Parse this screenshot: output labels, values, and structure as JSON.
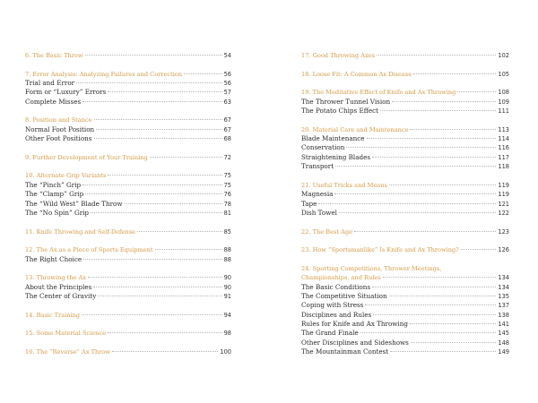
{
  "left": [
    {
      "title": "6. The Basic Throw",
      "page": "54",
      "heading": true
    },
    {},
    {
      "title": "7. Error Analysis: Analyzing Failures and Correction",
      "page": "56",
      "heading": true
    },
    {
      "title": "Trial and Error",
      "page": "56"
    },
    {
      "title": "Form or “Luxury” Errors",
      "page": "57"
    },
    {
      "title": "Complete Misses",
      "page": "63"
    },
    {},
    {
      "title": "8. Position and Stance",
      "page": "67",
      "heading": true
    },
    {
      "title": "Normal Foot Position",
      "page": "67"
    },
    {
      "title": "Other Foot Positions",
      "page": "68"
    },
    {},
    {
      "title": "9. Further Development of Your Training",
      "page": "72",
      "heading": true
    },
    {},
    {
      "title": "10. Alternate Grip Variants",
      "page": "75",
      "heading": true
    },
    {
      "title": "The “Pinch” Grip",
      "page": "75"
    },
    {
      "title": "The “Clamp” Grip",
      "page": "76"
    },
    {
      "title": "The “Wild West” Blade Throw",
      "page": "78"
    },
    {
      "title": "The “No Spin” Grip",
      "page": "81"
    },
    {},
    {
      "title": "11. Knife Throwing and Self-Defense",
      "page": "85",
      "heading": true
    },
    {},
    {
      "title": "12. The Ax as a Piece of Sports Equipment",
      "page": "88",
      "heading": true
    },
    {
      "title": "The Right Choice",
      "page": "88"
    },
    {},
    {
      "title": "13. Throwing the Ax",
      "page": "90",
      "heading": true
    },
    {
      "title": "About the Principles",
      "page": "90"
    },
    {
      "title": "The Center of Gravity",
      "page": "91"
    },
    {},
    {
      "title": "14. Basic Training",
      "page": "94",
      "heading": true
    },
    {},
    {
      "title": "15. Some Material Science",
      "page": "98",
      "heading": true
    },
    {},
    {
      "title": "16. The “Reverse” Ax Throw",
      "page": "100",
      "heading": true
    }
  ],
  "right": [
    {
      "title": "17. Good Throwing Axes",
      "page": "102",
      "heading": true
    },
    {},
    {
      "title": "18. Loose Fit: A Common Ax Disease",
      "page": "105",
      "heading": true
    },
    {},
    {
      "title": "19. The Meditative Effect of Knife and Ax Throwing",
      "page": "108",
      "heading": true
    },
    {
      "title": "The Thrower Tunnel Vision",
      "page": "109"
    },
    {
      "title": "The Potato Chips Effect",
      "page": "111"
    },
    {},
    {
      "title": "20. Material Care and Maintenance",
      "page": "113",
      "heading": true
    },
    {
      "title": "Blade Maintenance",
      "page": "114"
    },
    {
      "title": "Conservation",
      "page": "116"
    },
    {
      "title": "Straightening Blades",
      "page": "117"
    },
    {
      "title": "Transport",
      "page": "118"
    },
    {},
    {
      "title": "21. Useful Tricks and Means",
      "page": "119",
      "heading": true
    },
    {
      "title": "Magnesia",
      "page": "119"
    },
    {
      "title": "Tape",
      "page": "121"
    },
    {
      "title": "Dish Towel",
      "page": "122"
    },
    {},
    {
      "title": "22. The Best Age",
      "page": "123",
      "heading": true
    },
    {},
    {
      "title": "23. How “Sportsmanlike” Is Knife and Ax Throwing?",
      "page": "126",
      "heading": true
    },
    {},
    {
      "title": "24. Sporting Competitions, Thrower Meetings,",
      "page": "",
      "heading": true,
      "cont": true
    },
    {
      "title": "Championships, and Rules",
      "page": "134",
      "heading": true
    },
    {
      "title": "The Basic Conditions",
      "page": "134"
    },
    {
      "title": "The Competitive Situation",
      "page": "135"
    },
    {
      "title": "Coping with Stress",
      "page": "137"
    },
    {
      "title": "Disciplines and Rules",
      "page": "138"
    },
    {
      "title": "Rules for Knife and Ax Throwing",
      "page": "141"
    },
    {
      "title": "The Grand Finale",
      "page": "145"
    },
    {
      "title": "Other Disciplines and Sideshows",
      "page": "148"
    },
    {
      "title": "The Mountainman Contest",
      "page": "149"
    }
  ],
  "colors": {
    "heading": "#d59a45",
    "text": "#2a2a2a"
  }
}
